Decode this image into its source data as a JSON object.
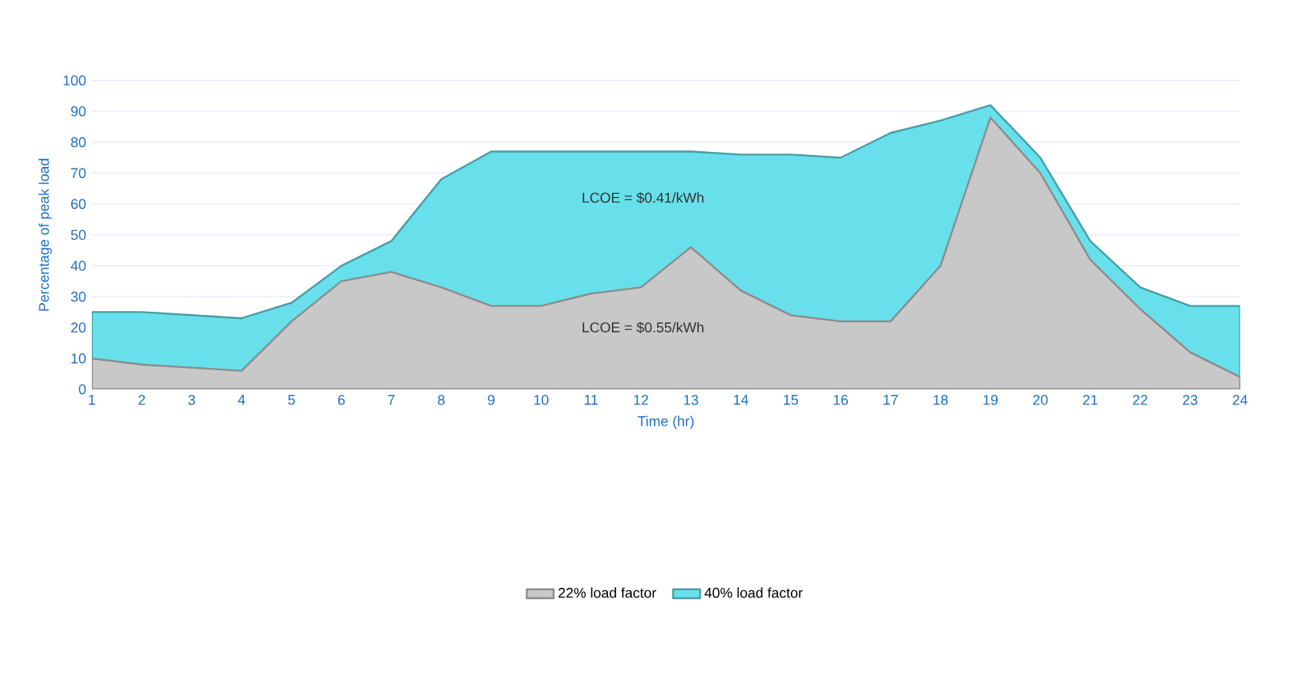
{
  "chart_data": {
    "type": "area",
    "xlabel": "Time (hr)",
    "ylabel": "Percentage of peak load",
    "categories": [
      "1",
      "2",
      "3",
      "4",
      "5",
      "6",
      "7",
      "8",
      "9",
      "10",
      "11",
      "12",
      "13",
      "14",
      "15",
      "16",
      "17",
      "18",
      "19",
      "20",
      "21",
      "22",
      "23",
      "24"
    ],
    "series": [
      {
        "name": "40% load factor",
        "color": "#67e0ec",
        "values": [
          25,
          25,
          24,
          23,
          28,
          40,
          48,
          68,
          77,
          77,
          77,
          77,
          77,
          76,
          76,
          75,
          83,
          87,
          92,
          75,
          48,
          33,
          27,
          27
        ]
      },
      {
        "name": "22% load factor",
        "color": "#c8c8c8",
        "values": [
          10,
          8,
          7,
          6,
          22,
          35,
          38,
          33,
          27,
          27,
          31,
          33,
          46,
          32,
          24,
          22,
          22,
          40,
          88,
          70,
          42,
          26,
          12,
          4
        ]
      }
    ],
    "ylim": [
      0,
      100
    ],
    "yticks": [
      0,
      10,
      20,
      30,
      40,
      50,
      60,
      70,
      80,
      90,
      100
    ],
    "grid": "y",
    "legend": "bottom",
    "annotations": [
      "LCOE = $0.41/kWh",
      "LCOE = $0.55/kWh"
    ]
  }
}
